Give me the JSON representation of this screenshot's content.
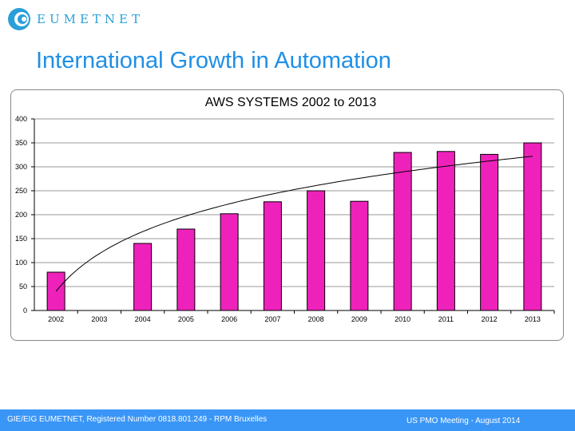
{
  "logo": {
    "text": "EUMETNET"
  },
  "slide": {
    "title": "International Growth in Automation"
  },
  "footer": {
    "left": "GIE/EIG EUMETNET, Registered Number 0818.801.249 - RPM Bruxelles",
    "right": "US PMO  Meeting -  August 2014"
  },
  "colors": {
    "bar": "#ee22bb",
    "accent": "#1f8fe6",
    "footer": "#3a96f6"
  },
  "chart_data": {
    "type": "bar",
    "title": "AWS SYSTEMS 2002 to 2013",
    "xlabel": "",
    "ylabel": "",
    "categories": [
      "2002",
      "2003",
      "2004",
      "2005",
      "2006",
      "2007",
      "2008",
      "2009",
      "2010",
      "2011",
      "2012",
      "2013"
    ],
    "values": [
      80,
      0,
      140,
      170,
      202,
      227,
      250,
      228,
      330,
      332,
      326,
      350
    ],
    "ylim": [
      0,
      400
    ],
    "yticks": [
      0,
      50,
      100,
      150,
      200,
      250,
      300,
      350,
      400
    ],
    "grid": true,
    "legend": "none",
    "trendline": {
      "type": "logarithmic",
      "start": 40,
      "end": 322
    }
  }
}
